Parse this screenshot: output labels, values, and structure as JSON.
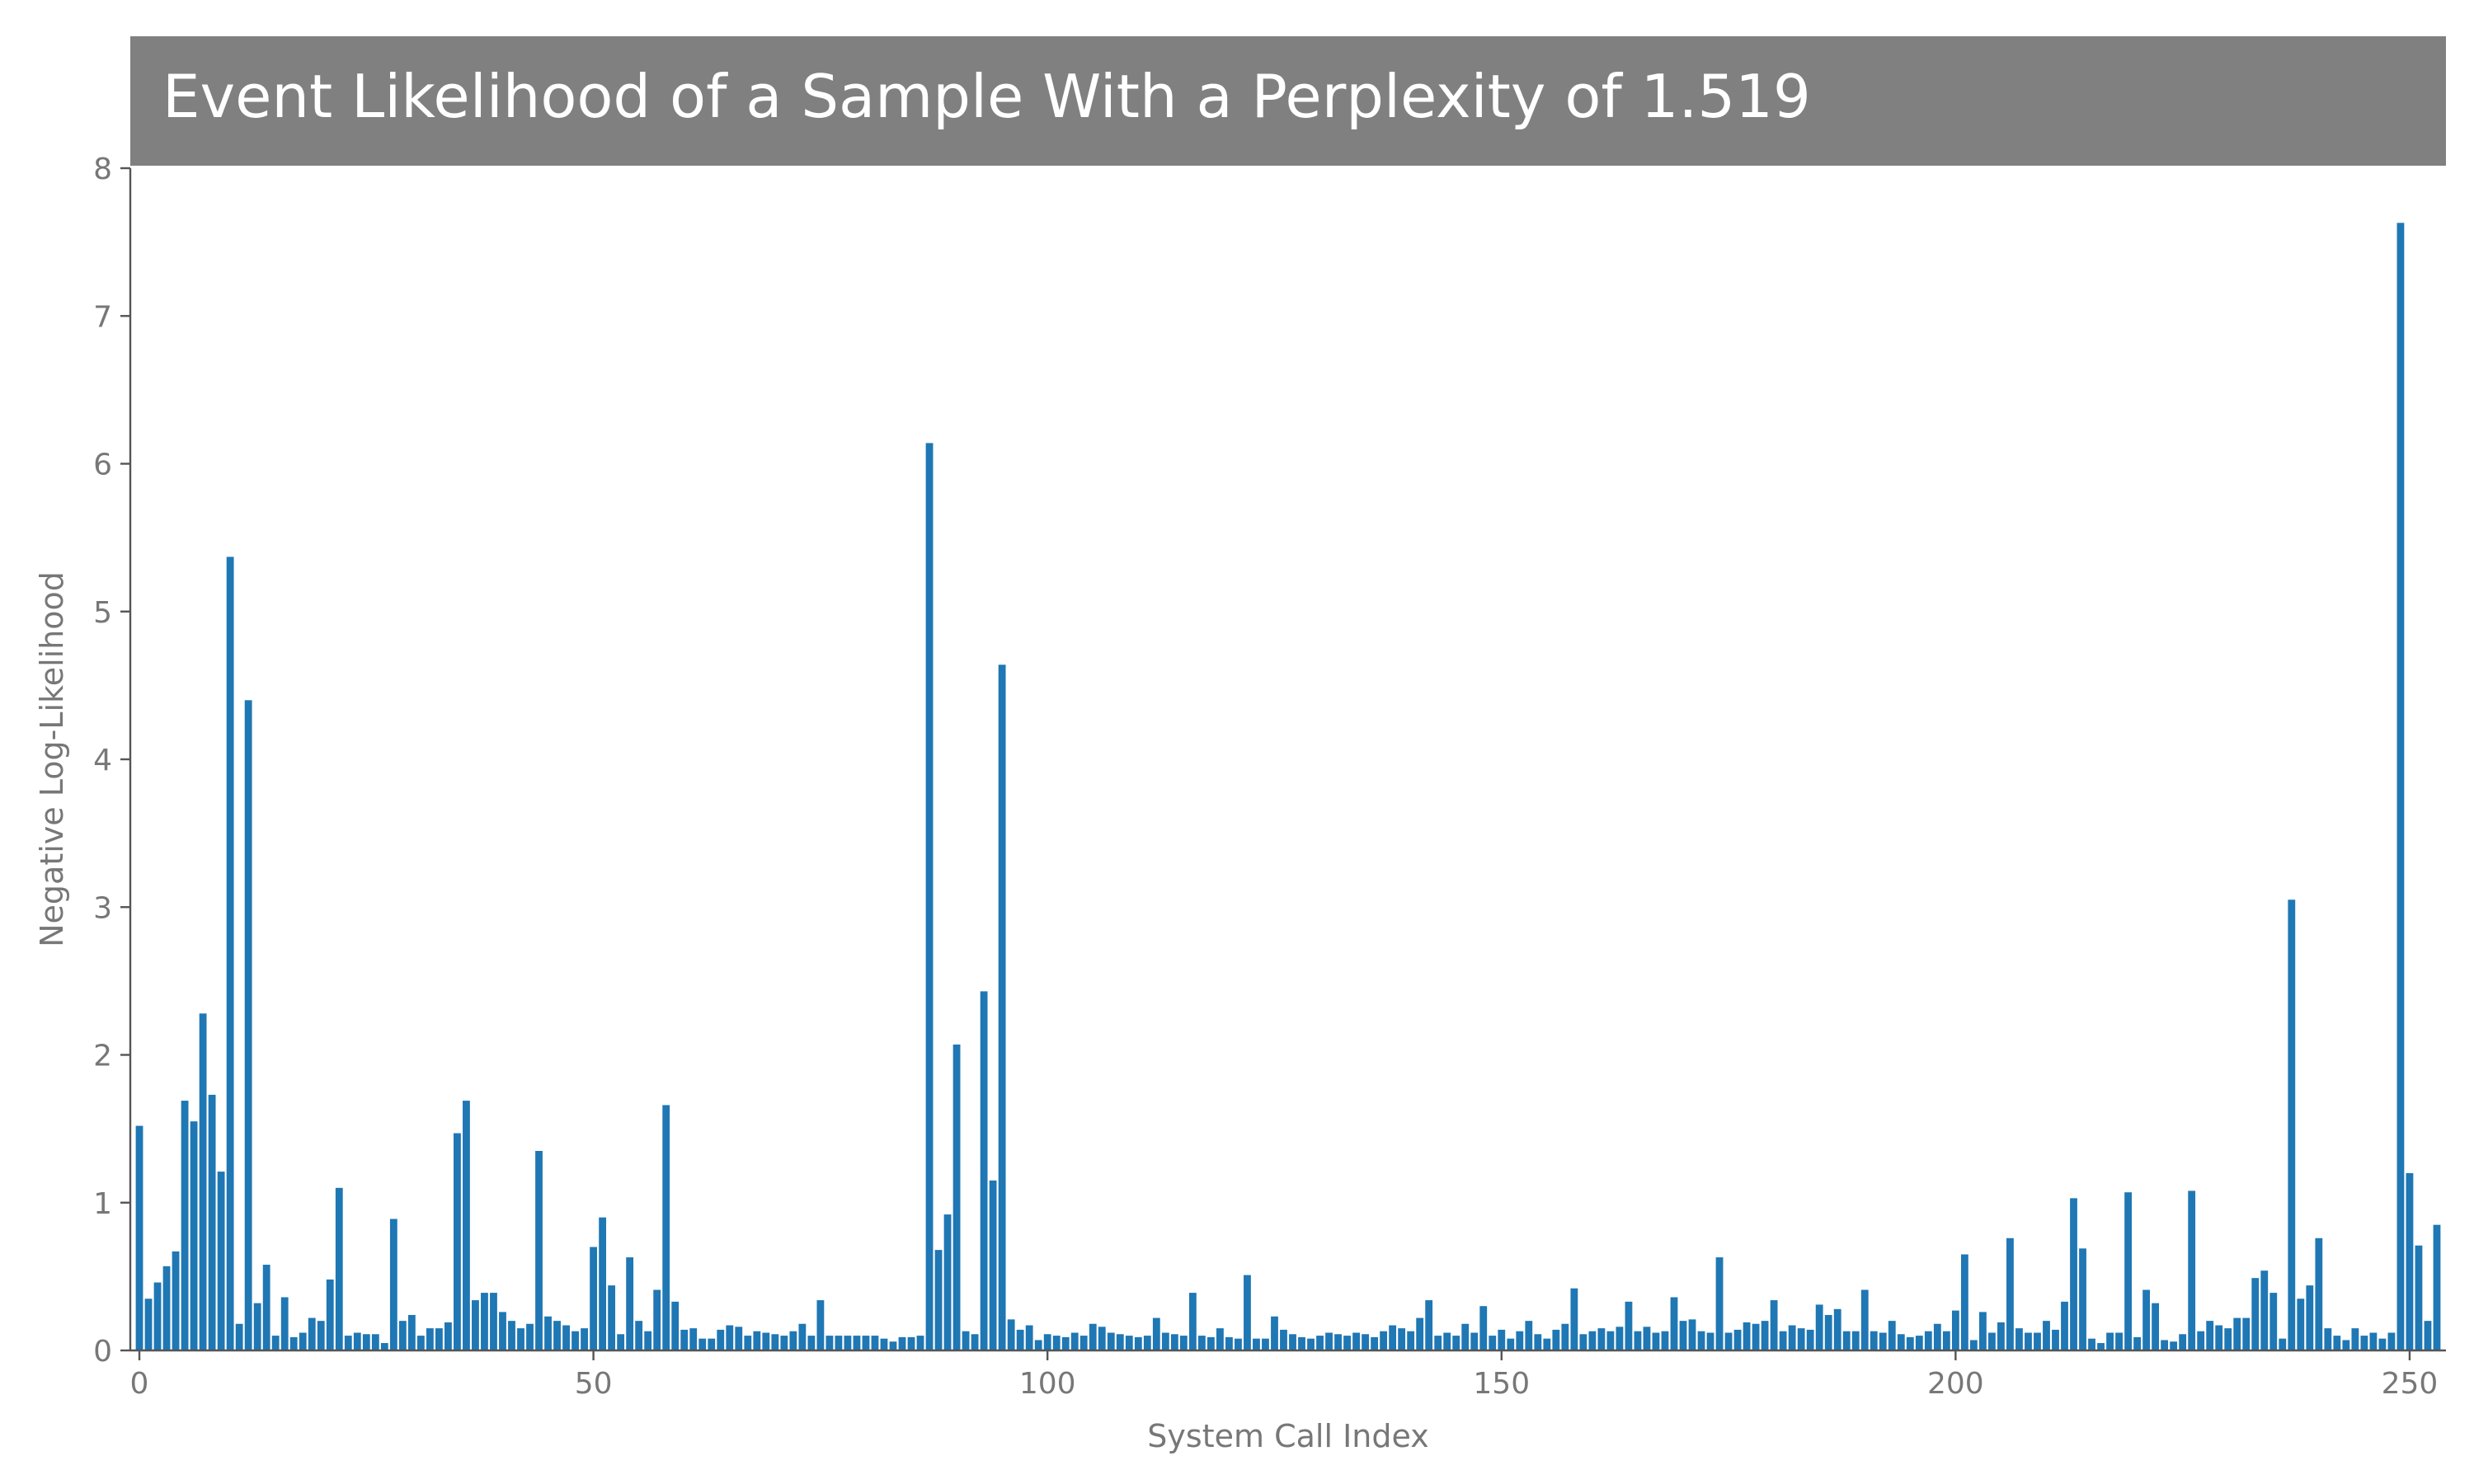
{
  "chart_data": {
    "type": "bar",
    "title": "Event Likelihood of a Sample With a Perplexity of 1.519",
    "xlabel": "System Call Index",
    "ylabel": "Negative Log-Likelihood",
    "xlim": [
      -1,
      254
    ],
    "ylim": [
      0,
      8
    ],
    "xticks": [
      0,
      50,
      100,
      150,
      200,
      250
    ],
    "yticks": [
      0,
      1,
      2,
      3,
      4,
      5,
      6,
      7,
      8
    ],
    "grid": false,
    "bar_color": "#1f77b4",
    "title_bg_color": "#808080",
    "values": [
      1.52,
      0.35,
      0.46,
      0.57,
      0.67,
      1.69,
      1.55,
      2.28,
      1.73,
      1.21,
      5.37,
      0.18,
      4.4,
      0.32,
      0.58,
      0.1,
      0.36,
      0.09,
      0.12,
      0.22,
      0.2,
      0.48,
      1.1,
      0.1,
      0.12,
      0.11,
      0.11,
      0.05,
      0.89,
      0.2,
      0.24,
      0.1,
      0.15,
      0.15,
      0.19,
      1.47,
      1.69,
      0.34,
      0.39,
      0.39,
      0.26,
      0.2,
      0.15,
      0.18,
      1.35,
      0.23,
      0.2,
      0.17,
      0.13,
      0.15,
      0.7,
      0.9,
      0.44,
      0.11,
      0.63,
      0.2,
      0.13,
      0.41,
      1.66,
      0.33,
      0.14,
      0.15,
      0.08,
      0.08,
      0.14,
      0.17,
      0.16,
      0.1,
      0.13,
      0.12,
      0.11,
      0.1,
      0.13,
      0.18,
      0.1,
      0.34,
      0.1,
      0.1,
      0.1,
      0.1,
      0.1,
      0.1,
      0.08,
      0.06,
      0.09,
      0.09,
      0.1,
      6.14,
      0.68,
      0.92,
      2.07,
      0.13,
      0.11,
      2.43,
      1.15,
      4.64,
      0.21,
      0.14,
      0.17,
      0.07,
      0.11,
      0.1,
      0.09,
      0.12,
      0.1,
      0.18,
      0.16,
      0.12,
      0.11,
      0.1,
      0.09,
      0.1,
      0.22,
      0.12,
      0.11,
      0.1,
      0.39,
      0.1,
      0.09,
      0.15,
      0.09,
      0.08,
      0.51,
      0.08,
      0.08,
      0.23,
      0.14,
      0.11,
      0.09,
      0.08,
      0.1,
      0.12,
      0.11,
      0.1,
      0.12,
      0.11,
      0.09,
      0.13,
      0.17,
      0.15,
      0.13,
      0.22,
      0.34,
      0.1,
      0.12,
      0.1,
      0.18,
      0.12,
      0.3,
      0.1,
      0.14,
      0.08,
      0.13,
      0.2,
      0.11,
      0.08,
      0.14,
      0.18,
      0.42,
      0.11,
      0.13,
      0.15,
      0.13,
      0.16,
      0.33,
      0.13,
      0.16,
      0.12,
      0.13,
      0.36,
      0.2,
      0.21,
      0.13,
      0.12,
      0.63,
      0.12,
      0.14,
      0.19,
      0.18,
      0.2,
      0.34,
      0.13,
      0.17,
      0.15,
      0.14,
      0.31,
      0.24,
      0.28,
      0.13,
      0.13,
      0.41,
      0.13,
      0.12,
      0.2,
      0.11,
      0.09,
      0.1,
      0.13,
      0.18,
      0.13,
      0.27,
      0.65,
      0.07,
      0.26,
      0.12,
      0.19,
      0.76,
      0.15,
      0.12,
      0.12,
      0.2,
      0.14,
      0.33,
      1.03,
      0.69,
      0.08,
      0.05,
      0.12,
      0.12,
      1.07,
      0.09,
      0.41,
      0.32,
      0.07,
      0.06,
      0.11,
      1.08,
      0.13,
      0.2,
      0.17,
      0.15,
      0.22,
      0.22,
      0.49,
      0.54,
      0.39,
      0.08,
      3.05,
      0.35,
      0.44,
      0.76,
      0.15,
      0.1,
      0.07,
      0.15,
      0.1,
      0.12,
      0.08,
      0.12,
      7.63,
      1.2,
      0.71,
      0.2,
      0.85
    ]
  }
}
